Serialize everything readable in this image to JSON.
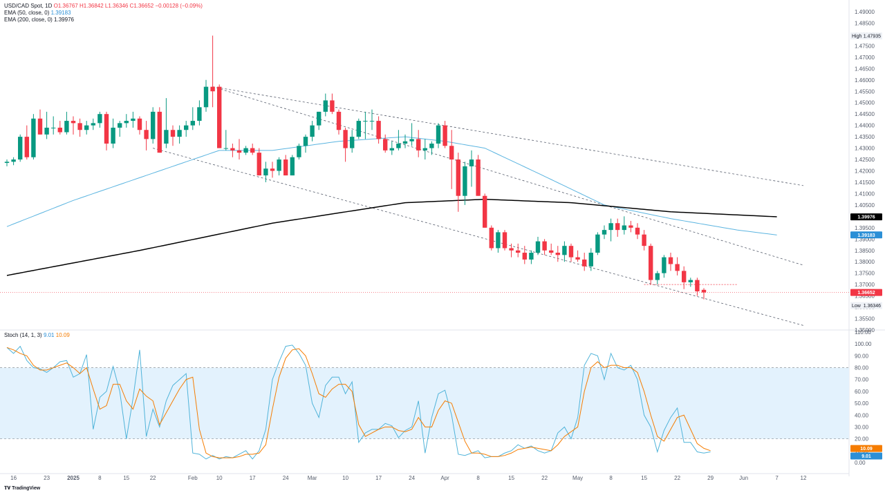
{
  "legend": {
    "symbol": "USD/CAD Spot, 1D",
    "open_label": "O",
    "open": "1.36767",
    "high_label": "H",
    "high": "1.36842",
    "low_label": "L",
    "low": "1.36346",
    "close_label": "C",
    "close": "1.36652",
    "change": "−0.00128 (−0.09%)",
    "ema50_label": "EMA (50, close, 0)",
    "ema50_value": "1.39183",
    "ema200_label": "EMA (200, close, 0)",
    "ema200_value": "1.39976",
    "stoch_label": "Stoch (14, 1, 3)",
    "stoch_k_value": "9.01",
    "stoch_d_value": "10.09"
  },
  "footer": {
    "brand": "TradingView"
  },
  "colors": {
    "up": "#089981",
    "down": "#f23645",
    "ema50": "#5ab4e0",
    "ema200": "#000000",
    "stoch_k": "#4fb3d9",
    "stoch_d": "#f57c00",
    "stoch_band": "#e3f2fd"
  },
  "chart_data": [
    {
      "type": "candlestick",
      "title": "USD/CAD Spot, 1D",
      "ylim": [
        1.35,
        1.49
      ],
      "y_ticks": [
        "1.49000",
        "1.48500",
        "1.48000",
        "1.47500",
        "1.47000",
        "1.46500",
        "1.46000",
        "1.45500",
        "1.45000",
        "1.44500",
        "1.44000",
        "1.43500",
        "1.43000",
        "1.42500",
        "1.42000",
        "1.41500",
        "1.41000",
        "1.40500",
        "1.40000",
        "1.39500",
        "1.39000",
        "1.38500",
        "1.38000",
        "1.37500",
        "1.37000",
        "1.36500",
        "1.36000",
        "1.35500",
        "1.35000"
      ],
      "x_ticks": [
        {
          "label": "16",
          "i": 1
        },
        {
          "label": "23",
          "i": 6
        },
        {
          "label": "2025",
          "i": 10
        },
        {
          "label": "8",
          "i": 14
        },
        {
          "label": "15",
          "i": 18
        },
        {
          "label": "22",
          "i": 22
        },
        {
          "label": "Feb",
          "i": 28
        },
        {
          "label": "10",
          "i": 32
        },
        {
          "label": "17",
          "i": 37
        },
        {
          "label": "24",
          "i": 42
        },
        {
          "label": "Mar",
          "i": 46
        },
        {
          "label": "10",
          "i": 51
        },
        {
          "label": "17",
          "i": 56
        },
        {
          "label": "24",
          "i": 61
        },
        {
          "label": "Apr",
          "i": 66
        },
        {
          "label": "8",
          "i": 71
        },
        {
          "label": "15",
          "i": 76
        },
        {
          "label": "22",
          "i": 81
        },
        {
          "label": "May",
          "i": 86
        },
        {
          "label": "8",
          "i": 91
        },
        {
          "label": "15",
          "i": 96
        },
        {
          "label": "22",
          "i": 101
        },
        {
          "label": "29",
          "i": 106
        },
        {
          "label": "Jun",
          "i": 111
        },
        {
          "label": "7",
          "i": 116
        },
        {
          "label": "12",
          "i": 120
        }
      ],
      "candles": [
        [
          1.4235,
          1.425,
          1.422,
          1.424
        ],
        [
          1.424,
          1.426,
          1.4225,
          1.425
        ],
        [
          1.425,
          1.436,
          1.424,
          1.435
        ],
        [
          1.435,
          1.44,
          1.425,
          1.426
        ],
        [
          1.426,
          1.445,
          1.425,
          1.443
        ],
        [
          1.443,
          1.447,
          1.436,
          1.436
        ],
        [
          1.436,
          1.446,
          1.434,
          1.439
        ],
        [
          1.439,
          1.444,
          1.436,
          1.439
        ],
        [
          1.439,
          1.442,
          1.436,
          1.437
        ],
        [
          1.437,
          1.446,
          1.436,
          1.442
        ],
        [
          1.442,
          1.444,
          1.436,
          1.441
        ],
        [
          1.441,
          1.443,
          1.435,
          1.438
        ],
        [
          1.438,
          1.442,
          1.436,
          1.44
        ],
        [
          1.44,
          1.443,
          1.438,
          1.441
        ],
        [
          1.441,
          1.446,
          1.439,
          1.445
        ],
        [
          1.445,
          1.446,
          1.429,
          1.432
        ],
        [
          1.432,
          1.443,
          1.43,
          1.439
        ],
        [
          1.439,
          1.442,
          1.435,
          1.441
        ],
        [
          1.441,
          1.445,
          1.439,
          1.442
        ],
        [
          1.442,
          1.446,
          1.439,
          1.443
        ],
        [
          1.443,
          1.444,
          1.436,
          1.438
        ],
        [
          1.438,
          1.442,
          1.429,
          1.434
        ],
        [
          1.434,
          1.448,
          1.432,
          1.446
        ],
        [
          1.446,
          1.448,
          1.428,
          1.428
        ],
        [
          1.432,
          1.452,
          1.43,
          1.438
        ],
        [
          1.438,
          1.44,
          1.431,
          1.435
        ],
        [
          1.435,
          1.44,
          1.432,
          1.438
        ],
        [
          1.438,
          1.442,
          1.435,
          1.44
        ],
        [
          1.44,
          1.448,
          1.438,
          1.442
        ],
        [
          1.442,
          1.451,
          1.44,
          1.448
        ],
        [
          1.448,
          1.46,
          1.446,
          1.457
        ],
        [
          1.457,
          1.4795,
          1.448,
          1.455
        ],
        [
          1.457,
          1.458,
          1.43,
          1.43
        ],
        [
          1.43,
          1.438,
          1.429,
          1.43
        ],
        [
          1.43,
          1.432,
          1.426,
          1.429
        ],
        [
          1.429,
          1.434,
          1.425,
          1.428
        ],
        [
          1.428,
          1.431,
          1.427,
          1.43
        ],
        [
          1.43,
          1.432,
          1.427,
          1.428
        ],
        [
          1.428,
          1.43,
          1.418,
          1.418
        ],
        [
          1.418,
          1.424,
          1.415,
          1.421
        ],
        [
          1.421,
          1.424,
          1.417,
          1.42
        ],
        [
          1.42,
          1.426,
          1.418,
          1.425
        ],
        [
          1.425,
          1.427,
          1.418,
          1.418
        ],
        [
          1.418,
          1.427,
          1.418,
          1.426
        ],
        [
          1.426,
          1.432,
          1.425,
          1.431
        ],
        [
          1.431,
          1.436,
          1.428,
          1.435
        ],
        [
          1.435,
          1.442,
          1.433,
          1.44
        ],
        [
          1.44,
          1.446,
          1.438,
          1.446
        ],
        [
          1.446,
          1.454,
          1.444,
          1.451
        ],
        [
          1.451,
          1.454,
          1.445,
          1.446
        ],
        [
          1.446,
          1.447,
          1.436,
          1.438
        ],
        [
          1.438,
          1.439,
          1.424,
          1.43
        ],
        [
          1.43,
          1.438,
          1.428,
          1.435
        ],
        [
          1.435,
          1.443,
          1.434,
          1.442
        ],
        [
          1.442,
          1.446,
          1.434,
          1.442
        ],
        [
          1.442,
          1.447,
          1.438,
          1.442
        ],
        [
          1.442,
          1.444,
          1.432,
          1.434
        ],
        [
          1.434,
          1.436,
          1.428,
          1.429
        ],
        [
          1.429,
          1.433,
          1.427,
          1.43
        ],
        [
          1.43,
          1.438,
          1.429,
          1.432
        ],
        [
          1.432,
          1.436,
          1.43,
          1.433
        ],
        [
          1.433,
          1.441,
          1.431,
          1.434
        ],
        [
          1.434,
          1.438,
          1.426,
          1.429
        ],
        [
          1.429,
          1.434,
          1.425,
          1.43
        ],
        [
          1.43,
          1.433,
          1.427,
          1.432
        ],
        [
          1.432,
          1.441,
          1.43,
          1.44
        ],
        [
          1.44,
          1.442,
          1.43,
          1.431
        ],
        [
          1.431,
          1.438,
          1.412,
          1.425
        ],
        [
          1.425,
          1.428,
          1.402,
          1.409
        ],
        [
          1.409,
          1.424,
          1.405,
          1.422
        ],
        [
          1.422,
          1.429,
          1.413,
          1.425
        ],
        [
          1.425,
          1.427,
          1.409,
          1.409
        ],
        [
          1.409,
          1.41,
          1.395,
          1.395
        ],
        [
          1.395,
          1.396,
          1.385,
          1.386
        ],
        [
          1.386,
          1.394,
          1.384,
          1.393
        ],
        [
          1.393,
          1.394,
          1.385,
          1.386
        ],
        [
          1.386,
          1.388,
          1.382,
          1.385
        ],
        [
          1.385,
          1.388,
          1.382,
          1.384
        ],
        [
          1.384,
          1.387,
          1.379,
          1.381
        ],
        [
          1.381,
          1.385,
          1.379,
          1.384
        ],
        [
          1.384,
          1.391,
          1.383,
          1.389
        ],
        [
          1.389,
          1.39,
          1.383,
          1.385
        ],
        [
          1.385,
          1.388,
          1.383,
          1.384
        ],
        [
          1.384,
          1.387,
          1.38,
          1.383
        ],
        [
          1.383,
          1.389,
          1.38,
          1.387
        ],
        [
          1.387,
          1.388,
          1.38,
          1.382
        ],
        [
          1.382,
          1.385,
          1.38,
          1.381
        ],
        [
          1.381,
          1.384,
          1.376,
          1.378
        ],
        [
          1.378,
          1.386,
          1.376,
          1.384
        ],
        [
          1.384,
          1.393,
          1.383,
          1.392
        ],
        [
          1.392,
          1.396,
          1.39,
          1.394
        ],
        [
          1.394,
          1.399,
          1.389,
          1.397
        ],
        [
          1.397,
          1.399,
          1.391,
          1.394
        ],
        [
          1.394,
          1.4,
          1.392,
          1.396
        ],
        [
          1.396,
          1.398,
          1.393,
          1.395
        ],
        [
          1.395,
          1.397,
          1.39,
          1.392
        ],
        [
          1.392,
          1.394,
          1.385,
          1.387
        ],
        [
          1.387,
          1.388,
          1.37,
          1.372
        ],
        [
          1.372,
          1.376,
          1.37,
          1.375
        ],
        [
          1.375,
          1.383,
          1.373,
          1.382
        ],
        [
          1.382,
          1.384,
          1.376,
          1.379
        ],
        [
          1.379,
          1.382,
          1.374,
          1.376
        ],
        [
          1.376,
          1.378,
          1.368,
          1.371
        ],
        [
          1.371,
          1.373,
          1.369,
          1.372
        ],
        [
          1.372,
          1.373,
          1.365,
          1.367
        ],
        [
          1.36767,
          1.36842,
          1.36346,
          1.36652
        ]
      ],
      "ema50": [
        [
          0,
          1.3955
        ],
        [
          10,
          1.407
        ],
        [
          20,
          1.417
        ],
        [
          28,
          1.425
        ],
        [
          32,
          1.429
        ],
        [
          40,
          1.429
        ],
        [
          50,
          1.433
        ],
        [
          60,
          1.435
        ],
        [
          66,
          1.433
        ],
        [
          72,
          1.43
        ],
        [
          80,
          1.419
        ],
        [
          90,
          1.405
        ],
        [
          100,
          1.399
        ],
        [
          110,
          1.394
        ],
        [
          116,
          1.3918
        ]
      ],
      "ema200": [
        [
          0,
          1.374
        ],
        [
          20,
          1.385
        ],
        [
          40,
          1.397
        ],
        [
          60,
          1.406
        ],
        [
          72,
          1.4075
        ],
        [
          85,
          1.406
        ],
        [
          100,
          1.402
        ],
        [
          116,
          1.3998
        ]
      ],
      "trendlines": [
        {
          "from": [
            31,
            1.457
          ],
          "to": [
            120,
            1.4135
          ]
        },
        {
          "from": [
            31,
            1.457
          ],
          "to": [
            120,
            1.3785
          ]
        },
        {
          "from": [
            22,
            1.43
          ],
          "to": [
            120,
            1.352
          ]
        }
      ],
      "support_level": 1.37,
      "high_marker": {
        "label": "High",
        "value": "1.47935"
      },
      "low_marker": {
        "label": "Low",
        "value": "1.36346"
      },
      "price_tags": [
        "1.39976",
        "1.39183",
        "1.36652"
      ]
    },
    {
      "type": "line",
      "title": "Stoch (14, 1, 3)",
      "ylim": [
        0,
        110
      ],
      "y_ticks": [
        "110.00",
        "100.00",
        "90.00",
        "80.00",
        "70.00",
        "60.00",
        "50.00",
        "40.00",
        "30.00",
        "20.00",
        "10.00",
        "0.00"
      ],
      "band": [
        20,
        80
      ],
      "series": [
        {
          "name": "%K",
          "values": [
            97,
            92,
            98,
            86,
            80,
            79,
            76,
            80,
            85,
            86,
            72,
            75,
            91,
            28,
            55,
            60,
            81,
            60,
            20,
            54,
            95,
            22,
            45,
            30,
            52,
            65,
            70,
            75,
            8,
            7,
            3,
            6,
            3,
            5,
            4,
            7,
            10,
            3,
            10,
            28,
            70,
            85,
            98,
            99,
            92,
            82,
            50,
            38,
            65,
            72,
            72,
            58,
            68,
            17,
            25,
            28,
            28,
            33,
            31,
            21,
            27,
            30,
            52,
            8,
            38,
            58,
            61,
            40,
            7,
            6,
            8,
            10,
            4,
            5,
            5,
            8,
            10,
            15,
            12,
            14,
            10,
            8,
            10,
            25,
            30,
            20,
            38,
            82,
            92,
            90,
            70,
            92,
            80,
            78,
            82,
            70,
            40,
            30,
            9,
            27,
            38,
            46,
            17,
            17,
            9,
            8,
            9
          ]
        },
        {
          "name": "%D",
          "values": [
            97,
            95,
            92,
            90,
            82,
            78,
            78,
            80,
            82,
            84,
            80,
            75,
            80,
            62,
            45,
            48,
            66,
            66,
            52,
            45,
            62,
            56,
            52,
            32,
            42,
            52,
            62,
            70,
            72,
            28,
            8,
            5,
            4,
            4,
            4,
            5,
            7,
            7,
            8,
            15,
            45,
            72,
            88,
            95,
            96,
            90,
            75,
            58,
            55,
            62,
            66,
            66,
            60,
            32,
            22,
            25,
            28,
            30,
            30,
            27,
            26,
            28,
            38,
            30,
            30,
            44,
            52,
            50,
            34,
            18,
            8,
            8,
            7,
            5,
            5,
            6,
            8,
            11,
            12,
            13,
            12,
            11,
            10,
            15,
            22,
            26,
            30,
            60,
            80,
            85,
            80,
            82,
            82,
            80,
            80,
            76,
            60,
            40,
            22,
            18,
            28,
            38,
            40,
            28,
            16,
            12,
            10
          ]
        }
      ],
      "price_tags": [
        "10.09",
        "9.01"
      ]
    }
  ]
}
